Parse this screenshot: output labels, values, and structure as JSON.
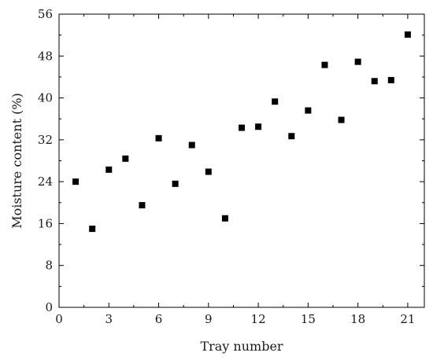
{
  "chart_data": {
    "type": "scatter",
    "title": "",
    "xlabel": "Tray number",
    "ylabel": "Moisture content (%)",
    "xlim": [
      0,
      22
    ],
    "ylim": [
      0,
      56
    ],
    "xticks": [
      0,
      3,
      6,
      9,
      12,
      15,
      18,
      21
    ],
    "yticks": [
      0,
      8,
      16,
      24,
      32,
      40,
      48,
      56
    ],
    "grid": false,
    "marker": "square",
    "marker_color": "#000000",
    "series": [
      {
        "x": [
          1,
          2,
          3,
          4,
          5,
          6,
          7,
          8,
          9,
          10,
          11,
          12,
          13,
          14,
          15,
          16,
          17,
          18,
          19,
          20,
          21
        ],
        "y": [
          24.0,
          15.0,
          26.3,
          28.4,
          19.5,
          32.3,
          23.6,
          31.0,
          25.9,
          17.0,
          34.3,
          34.5,
          39.3,
          32.7,
          37.6,
          46.3,
          35.8,
          46.9,
          43.2,
          43.4,
          52.1
        ]
      }
    ]
  }
}
